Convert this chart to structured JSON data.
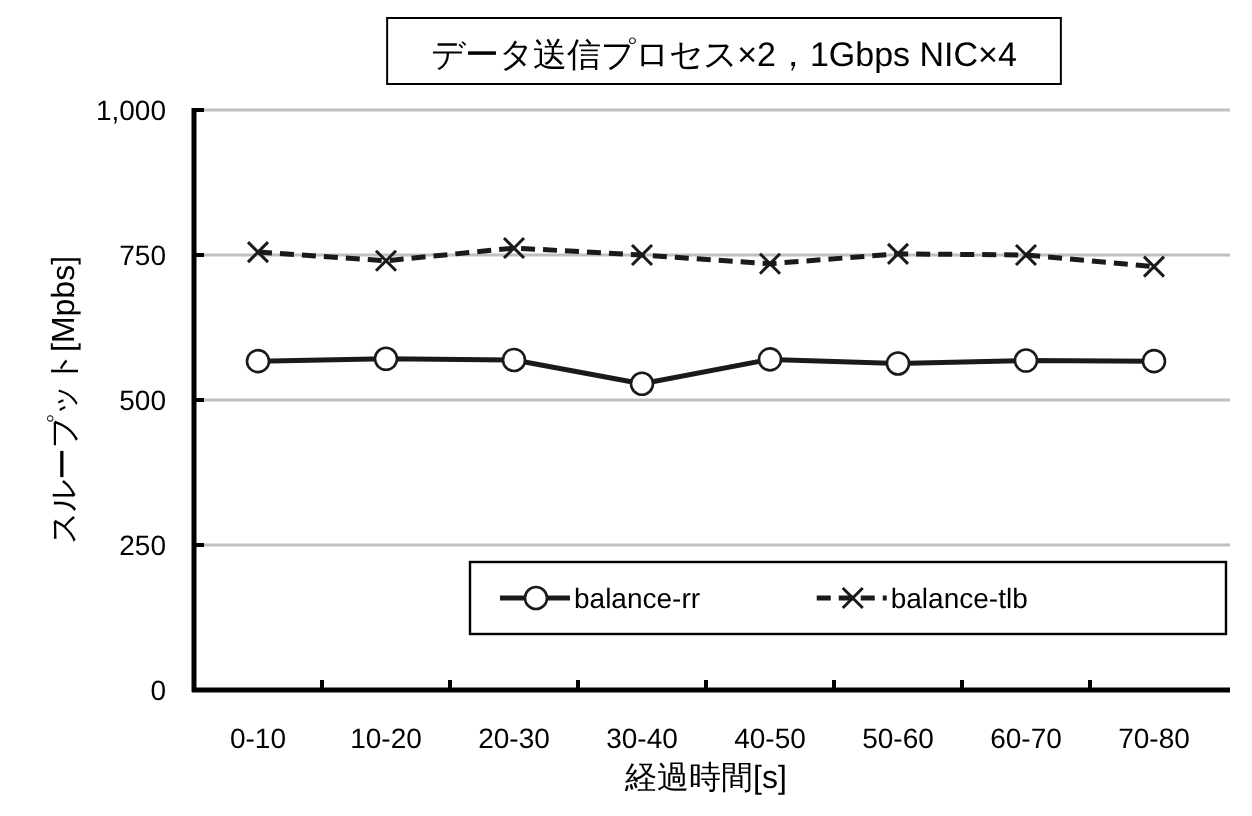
{
  "chart_data": {
    "type": "line",
    "title": "データ送信プロセス×2，1Gbps NIC×4",
    "xlabel": "経過時間[s]",
    "ylabel": "スループット[Mpbs]",
    "categories": [
      "0-10",
      "10-20",
      "20-30",
      "30-40",
      "40-50",
      "50-60",
      "60-70",
      "70-80"
    ],
    "series": [
      {
        "name": "balance-rr",
        "color": "#1a1a1a",
        "marker": "circle",
        "line_style": "solid",
        "values": [
          567,
          571,
          569,
          528,
          570,
          563,
          568,
          567
        ]
      },
      {
        "name": "balance-tlb",
        "color": "#1a1a1a",
        "marker": "cross",
        "line_style": "dashed",
        "values": [
          755,
          740,
          762,
          750,
          735,
          752,
          750,
          730
        ]
      }
    ],
    "ylim": [
      0,
      1000
    ],
    "yticks": [
      0,
      {
        "value": 250,
        "label": "250"
      },
      {
        "value": 500,
        "label": "500"
      },
      {
        "value": 750,
        "label": "750"
      },
      {
        "value": 1000,
        "label": "1,000"
      }
    ],
    "grid": "y",
    "legend": "bottom right"
  }
}
